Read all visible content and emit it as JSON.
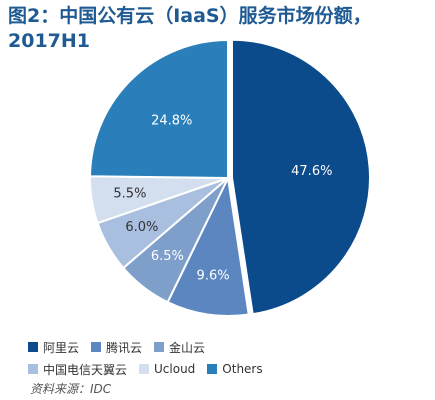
{
  "chart_data": {
    "type": "pie",
    "title": "图2：中国公有云（IaaS）服务市场份额，\n2017H1",
    "categories": [
      "阿里云",
      "腾讯云",
      "金山云",
      "中国电信天翼云",
      "Ucloud",
      "Others"
    ],
    "values": [
      47.6,
      9.6,
      6.5,
      6.0,
      5.5,
      24.8
    ],
    "data_labels": [
      "47.6%",
      "9.6%",
      "6.5%",
      "6.0%",
      "5.5%",
      "24.8%"
    ],
    "colors": [
      "#0b4a8b",
      "#5b86c0",
      "#7f9fcb",
      "#a9bfdf",
      "#d3deee",
      "#2a7fba"
    ],
    "label_colors": [
      "#ffffff",
      "#ffffff",
      "#ffffff",
      "#333333",
      "#333333",
      "#ffffff"
    ],
    "legend_placement": "bottom"
  },
  "source": "资料来源：IDC"
}
